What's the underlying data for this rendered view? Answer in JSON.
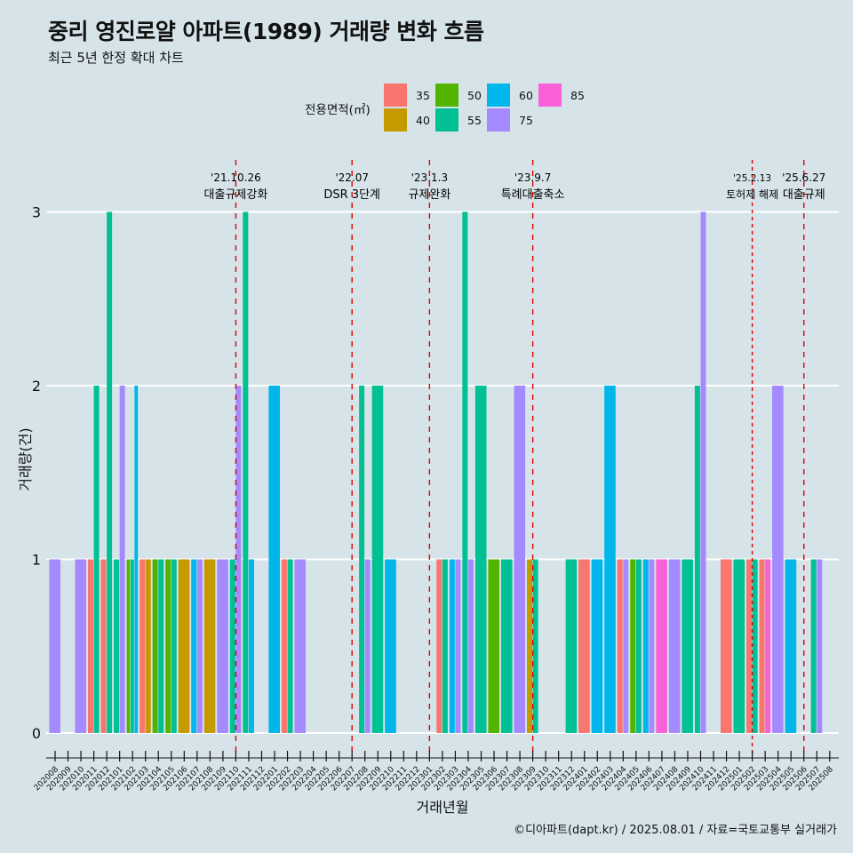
{
  "title": "중리 영진로얄 아파트(1989) 거래량 변화 흐름",
  "subtitle": "최근 5년 한정 확대 차트",
  "caption": "©디아파트(dapt.kr) / 2025.08.01 / 자료=국토교통부 실거래가",
  "colors": {
    "background": "#d6e4ea",
    "grid": "#ffffff",
    "event_line": "#e00000",
    "35": "#f8766d",
    "40": "#c49a00",
    "50": "#53b400",
    "55": "#00c094",
    "60": "#00b6eb",
    "75": "#a58aff",
    "85": "#fb61d7"
  },
  "chart_data": {
    "type": "bar",
    "xlabel": "거래년월",
    "ylabel": "거래량(건)",
    "ylim": [
      0,
      3
    ],
    "yticks": [
      "0",
      "1",
      "2",
      "3"
    ],
    "grid": true,
    "legend": {
      "title": "전용면적(㎡)",
      "placement": "top",
      "entries": [
        "35",
        "40",
        "50",
        "55",
        "60",
        "75",
        "85"
      ]
    },
    "categories": [
      "202008",
      "202009",
      "202010",
      "202011",
      "202012",
      "202101",
      "202102",
      "202103",
      "202104",
      "202105",
      "202106",
      "202107",
      "202108",
      "202109",
      "202110",
      "202111",
      "202112",
      "202201",
      "202202",
      "202203",
      "202204",
      "202205",
      "202206",
      "202207",
      "202208",
      "202209",
      "202210",
      "202211",
      "202212",
      "202301",
      "202302",
      "202303",
      "202304",
      "202305",
      "202306",
      "202307",
      "202308",
      "202309",
      "202310",
      "202311",
      "202312",
      "202401",
      "202402",
      "202403",
      "202404",
      "202405",
      "202406",
      "202407",
      "202408",
      "202409",
      "202410",
      "202411",
      "202412",
      "202501",
      "202502",
      "202503",
      "202504",
      "202505",
      "202506",
      "202507",
      "202508"
    ],
    "data": [
      {
        "month": "202008",
        "values": {
          "75": 1
        }
      },
      {
        "month": "202010",
        "values": {
          "75": 1
        }
      },
      {
        "month": "202011",
        "values": {
          "35": 1,
          "55": 2
        }
      },
      {
        "month": "202012",
        "values": {
          "35": 1,
          "55": 3
        }
      },
      {
        "month": "202101",
        "values": {
          "55": 1,
          "75": 2
        }
      },
      {
        "month": "202102",
        "values": {
          "50": 1,
          "55": 1,
          "60": 2
        }
      },
      {
        "month": "202103",
        "values": {
          "35": 1,
          "40": 1
        }
      },
      {
        "month": "202104",
        "values": {
          "55": 1,
          "50": 1
        }
      },
      {
        "month": "202105",
        "values": {
          "55": 1,
          "50": 1
        }
      },
      {
        "month": "202106",
        "values": {
          "40": 1
        }
      },
      {
        "month": "202107",
        "values": {
          "60": 1,
          "75": 1
        }
      },
      {
        "month": "202108",
        "values": {
          "40": 1
        }
      },
      {
        "month": "202109",
        "values": {
          "75": 1
        }
      },
      {
        "month": "202110",
        "values": {
          "55": 1,
          "75": 2
        }
      },
      {
        "month": "202111",
        "values": {
          "55": 3,
          "60": 1
        }
      },
      {
        "month": "202201",
        "values": {
          "60": 2
        }
      },
      {
        "month": "202202",
        "values": {
          "35": 1,
          "55": 1
        }
      },
      {
        "month": "202203",
        "values": {
          "75": 1
        }
      },
      {
        "month": "202208",
        "values": {
          "55": 2,
          "75": 1
        }
      },
      {
        "month": "202209",
        "values": {
          "55": 2
        }
      },
      {
        "month": "202210",
        "values": {
          "60": 1
        }
      },
      {
        "month": "202302",
        "values": {
          "35": 1,
          "55": 1
        }
      },
      {
        "month": "202303",
        "values": {
          "60": 1,
          "75": 1
        }
      },
      {
        "month": "202304",
        "values": {
          "55": 3,
          "75": 1
        }
      },
      {
        "month": "202305",
        "values": {
          "55": 2
        }
      },
      {
        "month": "202306",
        "values": {
          "50": 1
        }
      },
      {
        "month": "202307",
        "values": {
          "55": 1
        }
      },
      {
        "month": "202308",
        "values": {
          "75": 2
        }
      },
      {
        "month": "202309",
        "values": {
          "40": 1,
          "55": 1
        }
      },
      {
        "month": "202312",
        "values": {
          "55": 1
        }
      },
      {
        "month": "202401",
        "values": {
          "35": 1
        }
      },
      {
        "month": "202402",
        "values": {
          "60": 1
        }
      },
      {
        "month": "202403",
        "values": {
          "60": 2
        }
      },
      {
        "month": "202404",
        "values": {
          "35": 1,
          "75": 1
        }
      },
      {
        "month": "202405",
        "values": {
          "50": 1,
          "55": 1
        }
      },
      {
        "month": "202406",
        "values": {
          "60": 1,
          "75": 1
        }
      },
      {
        "month": "202407",
        "values": {
          "85": 1
        }
      },
      {
        "month": "202408",
        "values": {
          "75": 1
        }
      },
      {
        "month": "202409",
        "values": {
          "55": 1
        }
      },
      {
        "month": "202410",
        "values": {
          "55": 2,
          "75": 3
        }
      },
      {
        "month": "202412",
        "values": {
          "35": 1
        }
      },
      {
        "month": "202501",
        "values": {
          "55": 1
        }
      },
      {
        "month": "202502",
        "values": {
          "55": 1,
          "35": 1
        }
      },
      {
        "month": "202503",
        "values": {
          "85": 1,
          "35": 1
        }
      },
      {
        "month": "202504",
        "values": {
          "75": 2
        }
      },
      {
        "month": "202505",
        "values": {
          "60": 1
        }
      },
      {
        "month": "202507",
        "values": {
          "55": 1,
          "75": 1
        }
      }
    ],
    "events": [
      {
        "month": "202110",
        "offset": 0.0,
        "date": "'21.10.26",
        "label": "대출규제강화",
        "dash": "6,6"
      },
      {
        "month": "202207",
        "offset": 0.0,
        "date": "'22.07",
        "label": "DSR 3단계",
        "dash": "6,6"
      },
      {
        "month": "202301",
        "offset": 0.0,
        "date": "'23.1.3",
        "label": "규제완화",
        "dash": "6,6"
      },
      {
        "month": "202309",
        "offset": 0.0,
        "date": "'23.9.7",
        "label": "특례대출축소",
        "dash": "6,6"
      },
      {
        "month": "202502",
        "offset": 0.0,
        "date": "'25.2.13",
        "label": "토허제 해제",
        "dash": "4,4"
      },
      {
        "month": "202506",
        "offset": 0.0,
        "date": "'25.6.27",
        "label": "대출규제",
        "dash": "6,6"
      }
    ]
  }
}
